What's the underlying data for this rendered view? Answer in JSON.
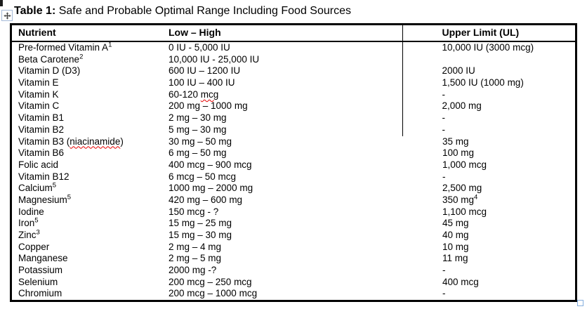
{
  "caption": {
    "label": "Table 1:",
    "text": " Safe and Probable Optimal Range Including Food Sources"
  },
  "icons": {
    "move_handle": "move-icon",
    "resize_handle": "resize-handle-square"
  },
  "spellcheck_color": "#e60000",
  "table": {
    "columns": [
      "Nutrient",
      "Low – High",
      "Upper Limit (UL)"
    ],
    "rows": [
      {
        "nutrient": {
          "text": "Pre-formed Vitamin A",
          "sup": "1"
        },
        "range": {
          "text": "0 IU - 5,000 IU"
        },
        "upper_limit": {
          "text": "10,000 IU (3000 mcg)"
        }
      },
      {
        "nutrient": {
          "text": "Beta Carotene",
          "sup": "2"
        },
        "range": {
          "text": "10,000 IU - 25,000 IU"
        },
        "upper_limit": {
          "text": ""
        }
      },
      {
        "nutrient": {
          "text": "Vitamin D (D3)"
        },
        "range": {
          "text": "600 IU – 1200 IU"
        },
        "upper_limit": {
          "text": "2000 IU"
        }
      },
      {
        "nutrient": {
          "text": "Vitamin E"
        },
        "range": {
          "text": "100 IU – 400 IU"
        },
        "upper_limit": {
          "text": "1,500 IU (1000 mg)"
        }
      },
      {
        "nutrient": {
          "text": "Vitamin K"
        },
        "range": {
          "text": "60-120 mcg",
          "misspelled": "mcg"
        },
        "upper_limit": {
          "text": "-"
        }
      },
      {
        "nutrient": {
          "text": "Vitamin C"
        },
        "range": {
          "text": "200 mg – 1000 mg"
        },
        "upper_limit": {
          "text": "2,000 mg"
        }
      },
      {
        "nutrient": {
          "text": "Vitamin B1"
        },
        "range": {
          "text": "2 mg – 30 mg"
        },
        "upper_limit": {
          "text": "-"
        }
      },
      {
        "nutrient": {
          "text": "Vitamin B2"
        },
        "range": {
          "text": "5 mg – 30 mg"
        },
        "upper_limit": {
          "text": "-"
        }
      },
      {
        "nutrient": {
          "text": "Vitamin B3 (niacinamide)",
          "misspelled": "niacinamide"
        },
        "range": {
          "text": "30 mg – 50 mg"
        },
        "upper_limit": {
          "text": "35 mg"
        }
      },
      {
        "nutrient": {
          "text": "Vitamin B6"
        },
        "range": {
          "text": "6 mg – 50 mg"
        },
        "upper_limit": {
          "text": "100 mg"
        }
      },
      {
        "nutrient": {
          "text": "Folic acid"
        },
        "range": {
          "text": "400 mcg – 900 mcg"
        },
        "upper_limit": {
          "text": "1,000 mcg"
        }
      },
      {
        "nutrient": {
          "text": "Vitamin B12"
        },
        "range": {
          "text": "6 mcg – 50 mcg"
        },
        "upper_limit": {
          "text": "-"
        }
      },
      {
        "nutrient": {
          "text": "Calcium",
          "sup": "5"
        },
        "range": {
          "text": "1000 mg – 2000 mg"
        },
        "upper_limit": {
          "text": "2,500 mg"
        }
      },
      {
        "nutrient": {
          "text": "Magnesium",
          "sup": "5"
        },
        "range": {
          "text": "420 mg – 600 mg"
        },
        "upper_limit": {
          "text": "350 mg",
          "sup": "4"
        }
      },
      {
        "nutrient": {
          "text": "Iodine"
        },
        "range": {
          "text": "150 mcg - ?"
        },
        "upper_limit": {
          "text": "1,100 mcg"
        }
      },
      {
        "nutrient": {
          "text": "Iron",
          "sup": "5"
        },
        "range": {
          "text": "15 mg – 25 mg"
        },
        "upper_limit": {
          "text": "45 mg"
        }
      },
      {
        "nutrient": {
          "text": "Zinc",
          "sup": "3"
        },
        "range": {
          "text": "15 mg – 30 mg"
        },
        "upper_limit": {
          "text": "40 mg"
        }
      },
      {
        "nutrient": {
          "text": "Copper"
        },
        "range": {
          "text": "2 mg – 4 mg"
        },
        "upper_limit": {
          "text": "10 mg"
        }
      },
      {
        "nutrient": {
          "text": "Manganese"
        },
        "range": {
          "text": "2 mg – 5 mg"
        },
        "upper_limit": {
          "text": "11 mg"
        }
      },
      {
        "nutrient": {
          "text": "Potassium"
        },
        "range": {
          "text": "2000 mg -?"
        },
        "upper_limit": {
          "text": "-"
        }
      },
      {
        "nutrient": {
          "text": "Selenium"
        },
        "range": {
          "text": "200 mcg – 250 mcg"
        },
        "upper_limit": {
          "text": "400 mcg"
        }
      },
      {
        "nutrient": {
          "text": "Chromium"
        },
        "range": {
          "text": "200 mcg – 1000 mcg"
        },
        "upper_limit": {
          "text": "-"
        }
      }
    ]
  }
}
